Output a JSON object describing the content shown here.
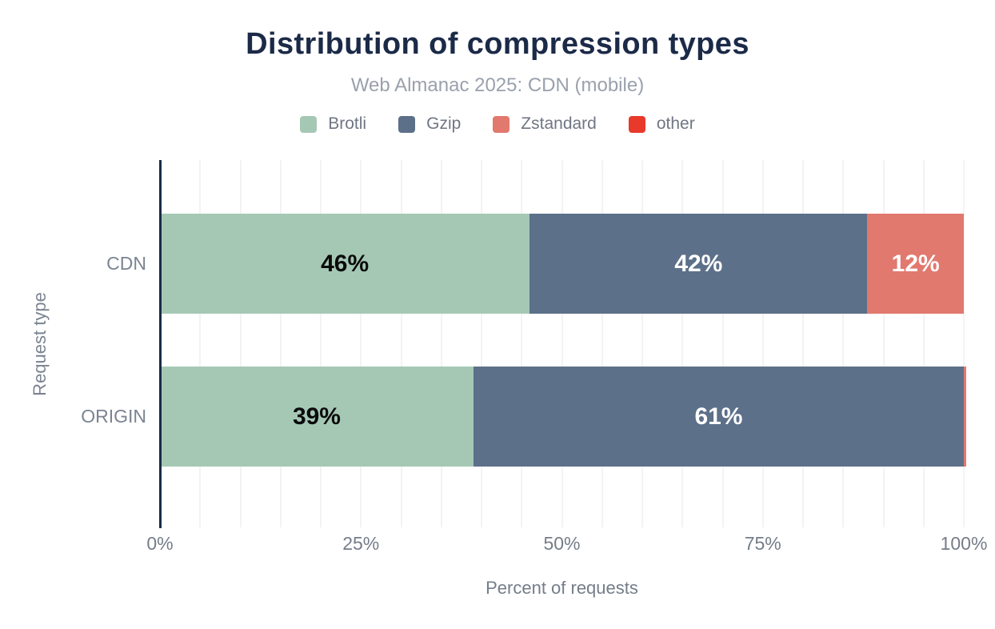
{
  "chart_data": {
    "type": "bar",
    "orientation": "horizontal",
    "stacked": true,
    "title": "Distribution of compression types",
    "subtitle": "Web Almanac 2025: CDN (mobile)",
    "xlabel": "Percent of requests",
    "ylabel": "Request type",
    "categories": [
      "CDN",
      "ORIGIN"
    ],
    "series": [
      {
        "name": "Brotli",
        "color": "#a5c8b5",
        "label_color": "#0b0b0b",
        "values": [
          46,
          39
        ]
      },
      {
        "name": "Gzip",
        "color": "#5d7089",
        "label_color": "#ffffff",
        "values": [
          42,
          61
        ]
      },
      {
        "name": "Zstandard",
        "color": "#e1796f",
        "label_color": "#ffffff",
        "values": [
          12,
          0.3
        ]
      },
      {
        "name": "other",
        "color": "#e8392b",
        "label_color": "#ffffff",
        "values": [
          0,
          0
        ]
      }
    ],
    "data_labels": [
      "46%",
      "42%",
      "12%",
      "39%",
      "61%"
    ],
    "label_min_value": 5,
    "xticks": [
      {
        "label": "0%",
        "value": 0
      },
      {
        "label": "25%",
        "value": 25
      },
      {
        "label": "50%",
        "value": 50
      },
      {
        "label": "75%",
        "value": 75
      },
      {
        "label": "100%",
        "value": 100
      }
    ],
    "xlim": [
      0,
      100
    ],
    "grid": {
      "show": true,
      "axis": "x",
      "interval": 5,
      "color": "#f3f3f3"
    },
    "legend_position": "top",
    "colors": {
      "title": "#1b2a47",
      "subtitle": "#99a1ad",
      "axis_line": "#1b2a47",
      "tick_text": "#747d8a",
      "category_text": "#7b8492",
      "grid": "#f3f3f3",
      "background": "#ffffff"
    }
  }
}
